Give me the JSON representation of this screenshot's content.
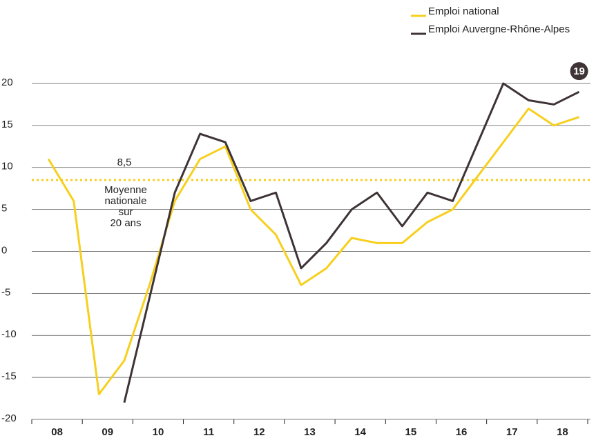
{
  "chart_data": {
    "type": "line",
    "xlim": [
      8,
      19
    ],
    "xticks": [
      {
        "value": 8.5,
        "label": "08"
      },
      {
        "value": 9.5,
        "label": "09"
      },
      {
        "value": 10.5,
        "label": "10"
      },
      {
        "value": 11.5,
        "label": "11"
      },
      {
        "value": 12.5,
        "label": "12"
      },
      {
        "value": 13.5,
        "label": "13"
      },
      {
        "value": 14.5,
        "label": "14"
      },
      {
        "value": 15.5,
        "label": "15"
      },
      {
        "value": 16.5,
        "label": "16"
      },
      {
        "value": 17.5,
        "label": "17"
      },
      {
        "value": 18.5,
        "label": "18"
      }
    ],
    "ylim": [
      -20,
      20
    ],
    "yticks": [
      -20,
      -15,
      -10,
      -5,
      0,
      5,
      10,
      15,
      20
    ],
    "grid": true,
    "legend": "top-right",
    "x": [
      8.33,
      8.83,
      9.33,
      9.83,
      10.33,
      10.83,
      11.33,
      11.83,
      12.33,
      12.83,
      13.33,
      13.83,
      14.33,
      14.83,
      15.33,
      15.83,
      16.33,
      16.83,
      17.33,
      17.83,
      18.33,
      18.83
    ],
    "series": [
      {
        "name": "Emploi national",
        "color": "#f7cf1d",
        "values": [
          11,
          6,
          -17,
          -13,
          -4,
          6,
          11,
          12.5,
          5,
          2,
          -4,
          -2,
          1.6,
          1,
          1,
          3.5,
          5,
          9,
          13,
          17,
          15,
          16
        ]
      },
      {
        "name": "Emploi Auvergne-Rhône-Alpes",
        "color": "#3e3335",
        "values": [
          null,
          null,
          null,
          -18,
          -5.5,
          7,
          14,
          13,
          6,
          7,
          -2,
          1,
          5,
          7,
          3,
          7,
          6,
          13,
          20,
          18,
          17.5,
          19
        ],
        "value_labels": [
          null,
          null,
          null,
          null,
          null,
          null,
          null,
          null,
          null,
          null,
          null,
          null,
          null,
          null,
          null,
          null,
          null,
          null,
          null,
          null,
          null,
          "19"
        ]
      }
    ],
    "reference_line": {
      "value": 8.5,
      "label": "8,5",
      "color": "#f7cf1d",
      "note": [
        "Moyenne",
        "nationale",
        "sur",
        "20 ans"
      ]
    }
  }
}
